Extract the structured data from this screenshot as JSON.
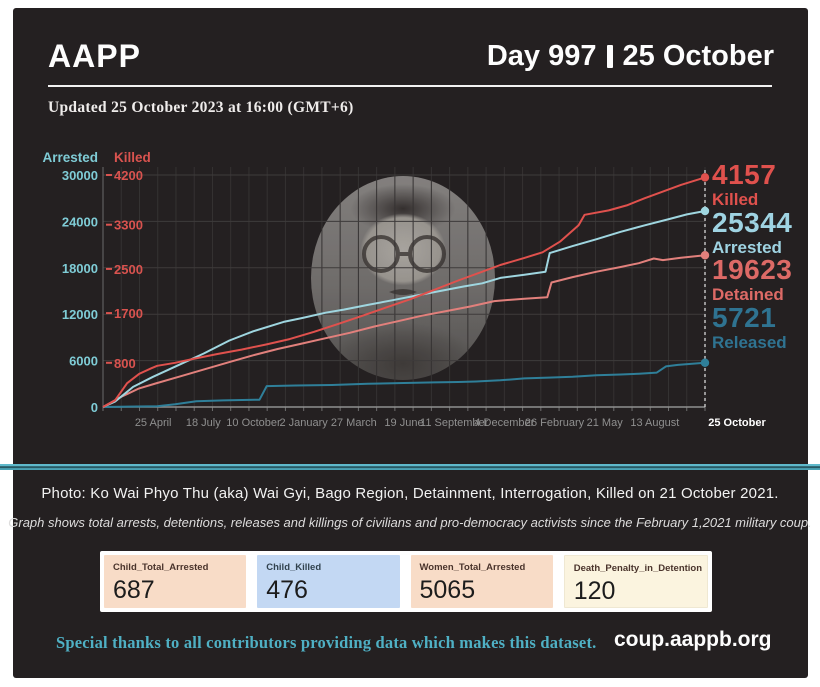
{
  "page": {
    "background": "#ffffff",
    "card_background": "#242021",
    "divider_color": "#4aa2b4"
  },
  "header": {
    "brand": "AAPP",
    "day_counter": "Day 997",
    "separator": "|",
    "date": "25 October",
    "updated": "Updated 25 October 2023 at 16:00 (GMT+6)"
  },
  "chart_data": {
    "type": "line",
    "left_axis": {
      "label": "Arrested",
      "ticks": [
        0,
        6000,
        12000,
        18000,
        24000,
        30000
      ],
      "max": 30000,
      "color": "#7fccd6"
    },
    "killed_axis": {
      "label": "Killed",
      "ticks": [
        800,
        1700,
        2500,
        3300,
        4200
      ],
      "max": 4200,
      "color": "#d9534f"
    },
    "x_ticks": [
      "25 April",
      "18 July",
      "10 October",
      "2 January",
      "27 March",
      "19 June",
      "11 September",
      "4 December",
      "26 February",
      "21 May",
      "13 August",
      "25 October"
    ],
    "x_range_note": "1 February 2021 to 25 October 2023",
    "grid": true,
    "series": [
      {
        "name": "Released",
        "color": "#2f7f99",
        "scale": "arrested",
        "final": 5721,
        "points": [
          [
            0,
            0
          ],
          [
            0.09,
            100
          ],
          [
            0.12,
            350
          ],
          [
            0.155,
            750
          ],
          [
            0.2,
            850
          ],
          [
            0.26,
            950
          ],
          [
            0.272,
            2700
          ],
          [
            0.32,
            2780
          ],
          [
            0.38,
            2850
          ],
          [
            0.44,
            3000
          ],
          [
            0.5,
            3100
          ],
          [
            0.55,
            3180
          ],
          [
            0.59,
            3230
          ],
          [
            0.62,
            3300
          ],
          [
            0.66,
            3450
          ],
          [
            0.7,
            3700
          ],
          [
            0.74,
            3800
          ],
          [
            0.78,
            3900
          ],
          [
            0.82,
            4100
          ],
          [
            0.86,
            4200
          ],
          [
            0.89,
            4300
          ],
          [
            0.92,
            4450
          ],
          [
            0.935,
            5250
          ],
          [
            0.955,
            5450
          ],
          [
            1,
            5721
          ]
        ]
      },
      {
        "name": "Detained",
        "color": "#e2807c",
        "scale": "arrested",
        "final": 19623,
        "points": [
          [
            0,
            0
          ],
          [
            0.03,
            1300
          ],
          [
            0.06,
            2400
          ],
          [
            0.09,
            3100
          ],
          [
            0.13,
            4000
          ],
          [
            0.17,
            4900
          ],
          [
            0.21,
            5800
          ],
          [
            0.25,
            6700
          ],
          [
            0.29,
            7500
          ],
          [
            0.33,
            8200
          ],
          [
            0.37,
            8900
          ],
          [
            0.41,
            9600
          ],
          [
            0.45,
            10400
          ],
          [
            0.49,
            11100
          ],
          [
            0.53,
            11800
          ],
          [
            0.57,
            12400
          ],
          [
            0.61,
            13000
          ],
          [
            0.65,
            13700
          ],
          [
            0.7,
            14000
          ],
          [
            0.738,
            14200
          ],
          [
            0.745,
            16100
          ],
          [
            0.78,
            16800
          ],
          [
            0.82,
            17500
          ],
          [
            0.86,
            18100
          ],
          [
            0.89,
            18600
          ],
          [
            0.915,
            19200
          ],
          [
            0.93,
            19000
          ],
          [
            0.96,
            19300
          ],
          [
            1,
            19623
          ]
        ]
      },
      {
        "name": "Arrested",
        "color": "#9fd6e0",
        "scale": "arrested",
        "final": 25344,
        "points": [
          [
            0,
            0
          ],
          [
            0.02,
            700
          ],
          [
            0.05,
            2600
          ],
          [
            0.083,
            3900
          ],
          [
            0.125,
            5400
          ],
          [
            0.167,
            6900
          ],
          [
            0.21,
            8600
          ],
          [
            0.25,
            9800
          ],
          [
            0.3,
            11000
          ],
          [
            0.33,
            11500
          ],
          [
            0.37,
            12200
          ],
          [
            0.4,
            12600
          ],
          [
            0.44,
            13200
          ],
          [
            0.48,
            13800
          ],
          [
            0.52,
            14400
          ],
          [
            0.56,
            15000
          ],
          [
            0.6,
            15600
          ],
          [
            0.63,
            16000
          ],
          [
            0.66,
            16700
          ],
          [
            0.7,
            17100
          ],
          [
            0.735,
            17500
          ],
          [
            0.742,
            19900
          ],
          [
            0.78,
            20800
          ],
          [
            0.82,
            21700
          ],
          [
            0.86,
            22650
          ],
          [
            0.9,
            23500
          ],
          [
            0.94,
            24300
          ],
          [
            0.97,
            24900
          ],
          [
            1,
            25344
          ]
        ]
      },
      {
        "name": "Killed",
        "color": "#e0514d",
        "scale": "killed",
        "final": 4157,
        "points": [
          [
            0,
            0
          ],
          [
            0.02,
            120
          ],
          [
            0.04,
            430
          ],
          [
            0.06,
            600
          ],
          [
            0.08,
            700
          ],
          [
            0.09,
            745
          ],
          [
            0.12,
            800
          ],
          [
            0.15,
            870
          ],
          [
            0.19,
            960
          ],
          [
            0.23,
            1040
          ],
          [
            0.27,
            1130
          ],
          [
            0.31,
            1230
          ],
          [
            0.35,
            1360
          ],
          [
            0.39,
            1500
          ],
          [
            0.43,
            1650
          ],
          [
            0.47,
            1800
          ],
          [
            0.51,
            1950
          ],
          [
            0.55,
            2120
          ],
          [
            0.59,
            2290
          ],
          [
            0.63,
            2450
          ],
          [
            0.66,
            2570
          ],
          [
            0.7,
            2700
          ],
          [
            0.73,
            2800
          ],
          [
            0.76,
            3000
          ],
          [
            0.79,
            3290
          ],
          [
            0.8,
            3480
          ],
          [
            0.84,
            3560
          ],
          [
            0.87,
            3650
          ],
          [
            0.9,
            3780
          ],
          [
            0.93,
            3900
          ],
          [
            0.96,
            4020
          ],
          [
            1,
            4157
          ]
        ]
      }
    ]
  },
  "annotations": [
    {
      "value": "4157",
      "label": "Killed",
      "color": "#e0514d"
    },
    {
      "value": "25344",
      "label": "Arrested",
      "color": "#9fd3e2"
    },
    {
      "value": "19623",
      "label": "Detained",
      "color": "#dd6a66"
    },
    {
      "value": "5721",
      "label": "Released",
      "color": "#2f7391"
    }
  ],
  "captions": {
    "photo": "Photo: Ko Wai Phyo Thu (aka) Wai Gyi, Bago Region, Detainment, Interrogation, Killed on 21 October 2021.",
    "graph_note": "Graph shows total arrests, detentions, releases and killings of civilians and pro-democracy activists since the February 1,2021 military coup."
  },
  "stats": [
    {
      "label": "Child_Total_Arrested",
      "value": "687",
      "bg": "#f8dcc7"
    },
    {
      "label": "Child_Killed",
      "value": "476",
      "bg": "#c3d8f3"
    },
    {
      "label": "Women_Total_Arrested",
      "value": "5065",
      "bg": "#f8dcc7"
    },
    {
      "label": "Death_Penalty_in_Detention",
      "value": "120",
      "bg": "#fbf4df"
    }
  ],
  "footer": {
    "thanks": "Special thanks to all contributors providing data which makes this dataset.",
    "site": "coup.aappb.org"
  }
}
